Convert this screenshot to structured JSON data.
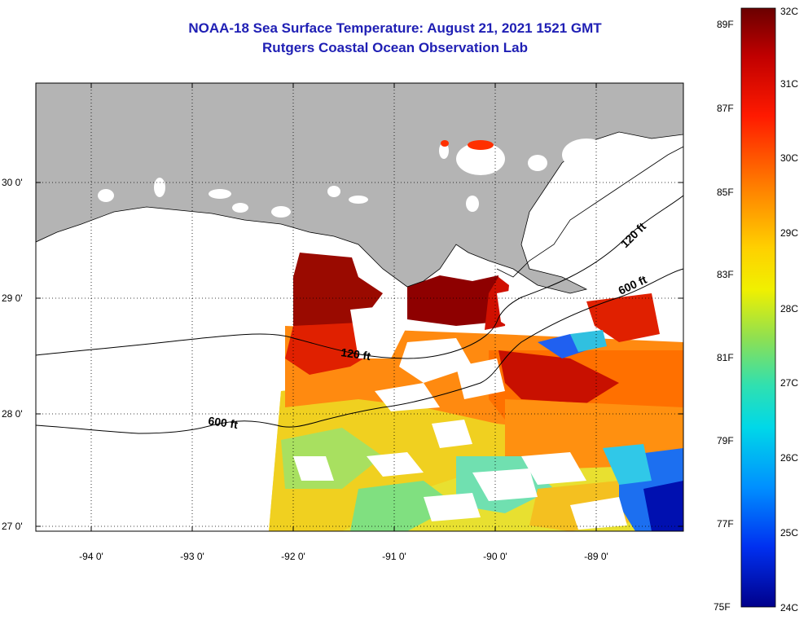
{
  "title": {
    "line1": "NOAA-18 Sea Surface Temperature:  August 21, 2021 1521 GMT",
    "line2": "Rutgers Coastal Ocean Observation Lab"
  },
  "axes": {
    "lon_labels": [
      "-94 0'",
      "-93 0'",
      "-92 0'",
      "-91 0'",
      "-90 0'",
      "-89 0'"
    ],
    "lat_labels": [
      "30 0'",
      "29 0'",
      "28 0'",
      "27 0'"
    ]
  },
  "contours": {
    "inner_label": "120 ft",
    "outer_label": "600 ft",
    "inner_label_east": "120 ft",
    "outer_label_east": "600 ft"
  },
  "colorbar": {
    "fahrenheit_labels": [
      "89F",
      "87F",
      "85F",
      "83F",
      "81F",
      "79F",
      "77F",
      "75F"
    ],
    "celsius_labels": [
      "32C",
      "31C",
      "30C",
      "29C",
      "28C",
      "27C",
      "26C",
      "25C",
      "24C"
    ],
    "colors": [
      "#8b0000",
      "#cc0000",
      "#ff2a00",
      "#ff7f00",
      "#ffc800",
      "#f0f000",
      "#a0e040",
      "#40e0a0",
      "#00d8e8",
      "#00a0ff",
      "#0050ff",
      "#0000cc",
      "#00008b"
    ]
  },
  "colors": {
    "land": "#b4b4b4",
    "title": "#1f1fb4",
    "no_data": "#ffffff"
  }
}
